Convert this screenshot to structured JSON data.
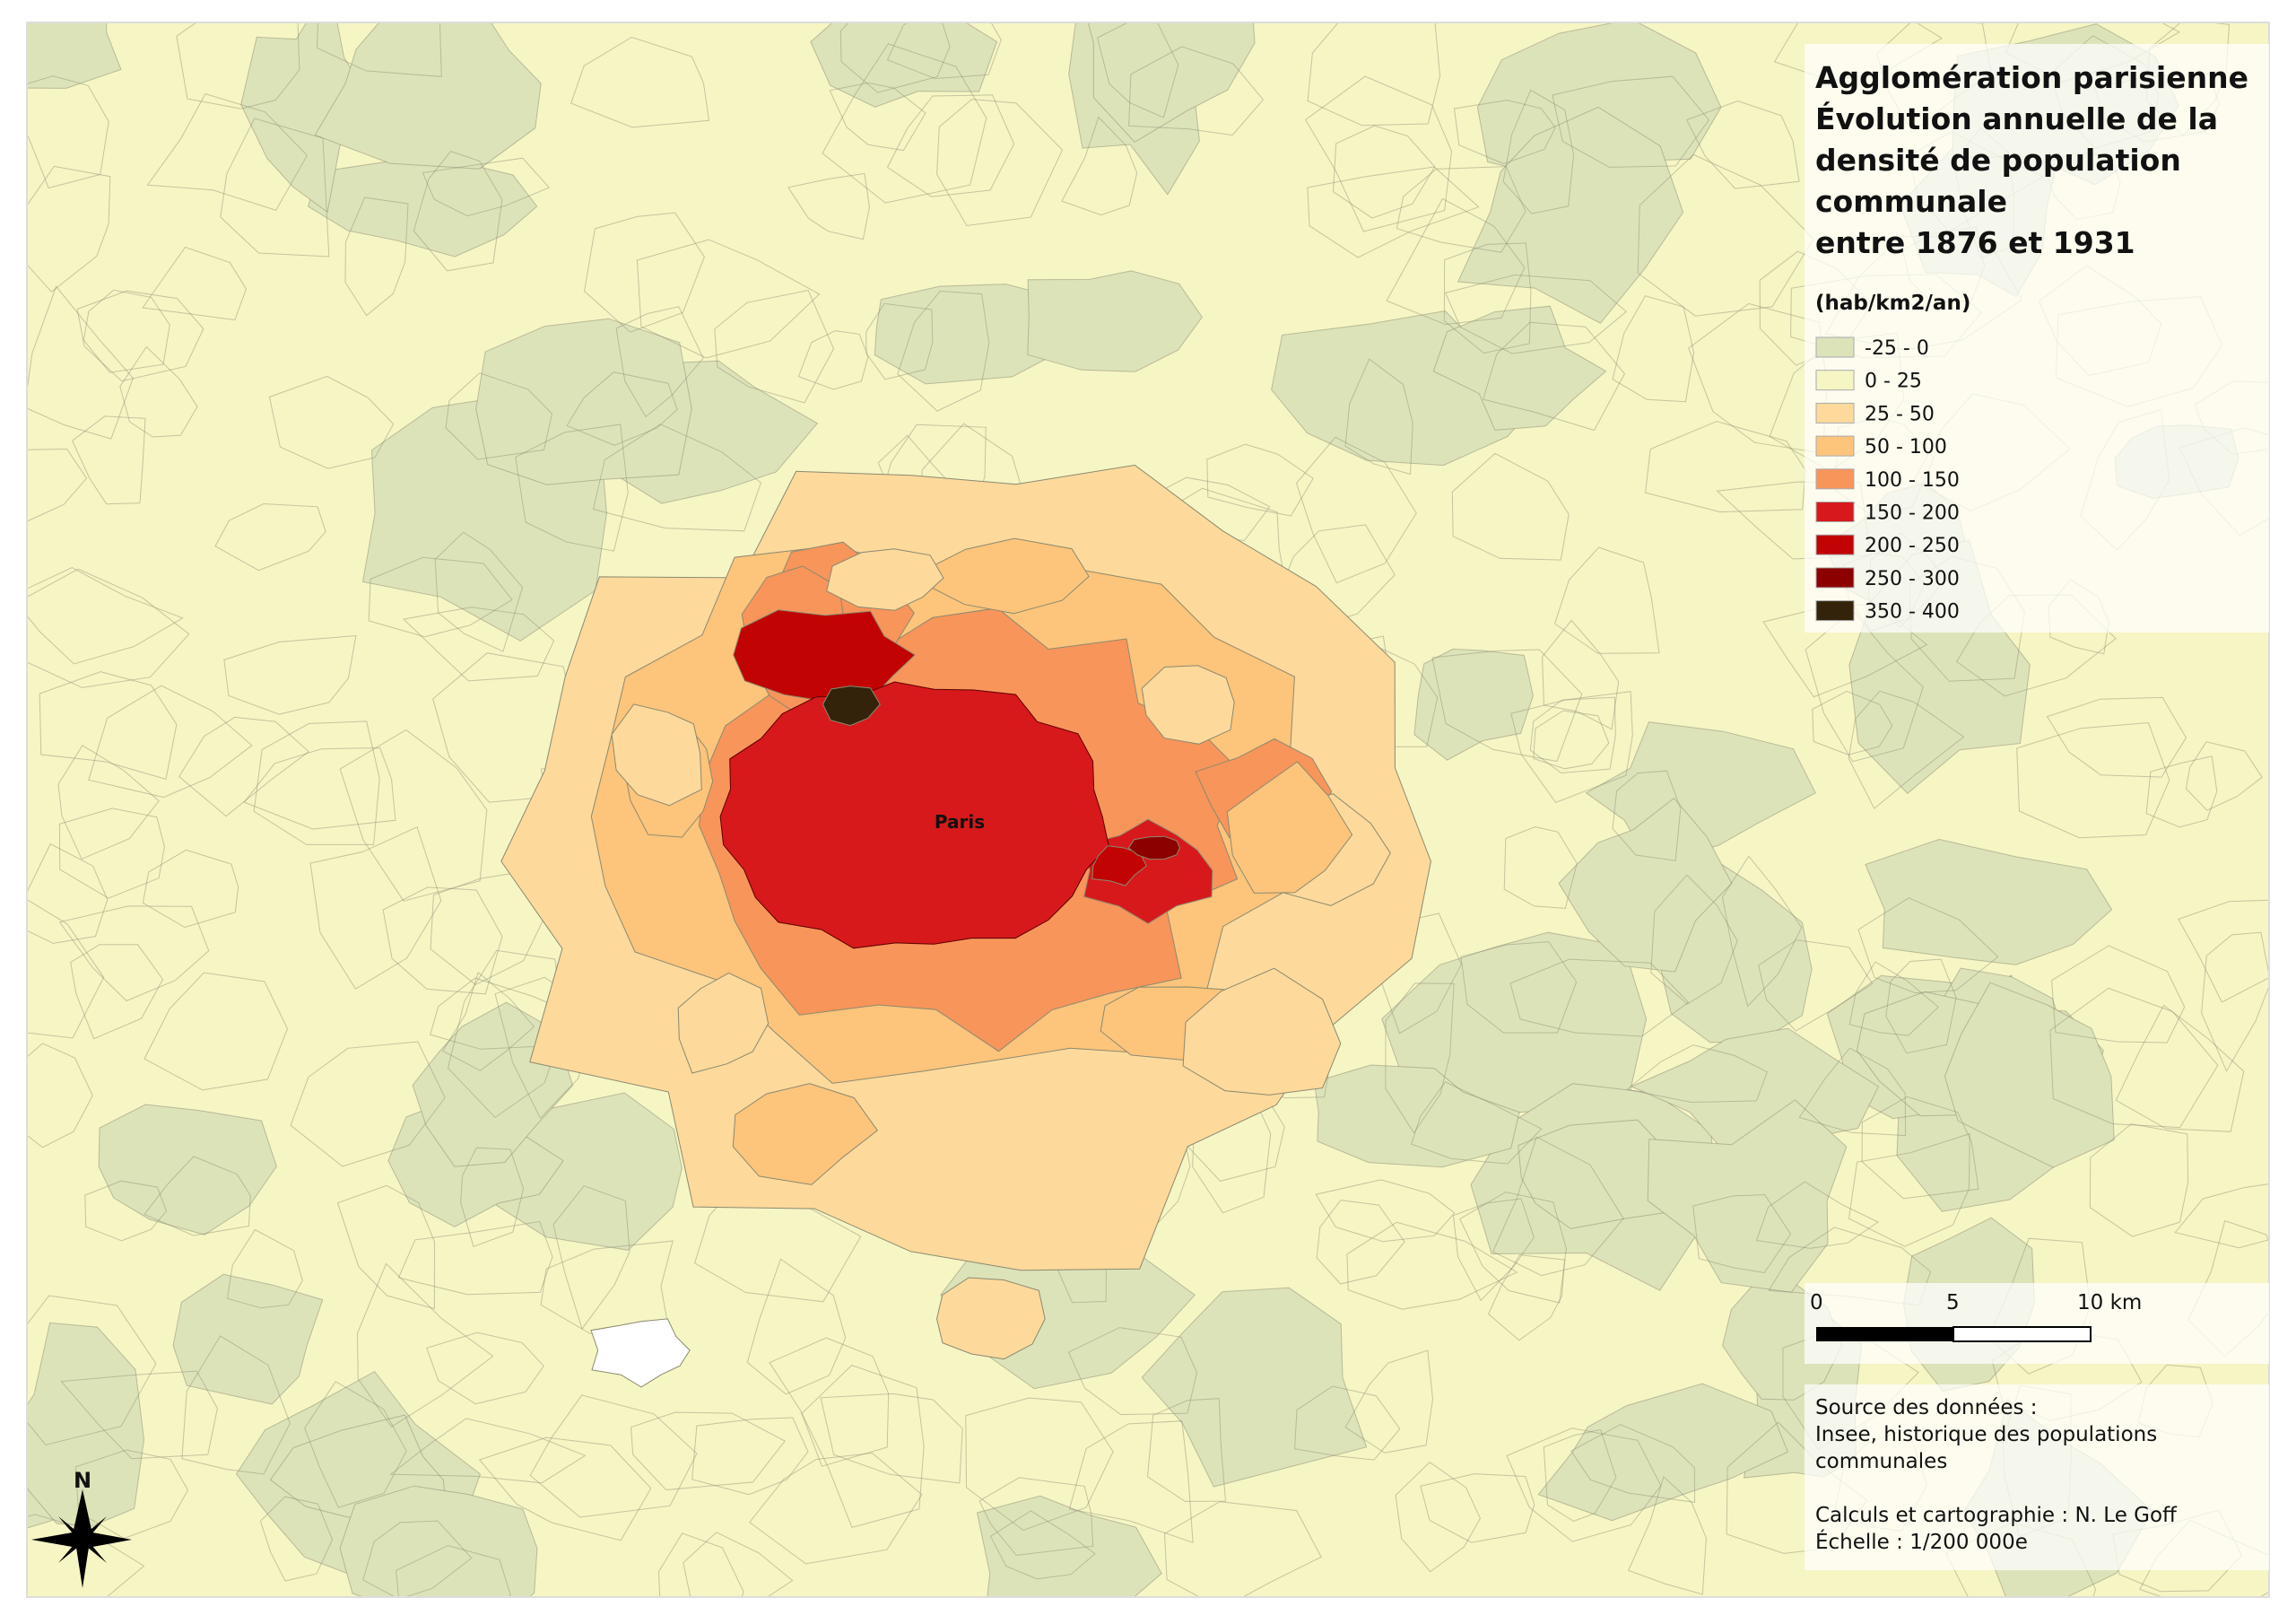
{
  "title": [
    "Agglomération parisienne",
    "Évolution annuelle de la",
    "densité de population",
    "communale",
    "entre 1876 et 1931"
  ],
  "legend": {
    "unit": "(hab/km2/an)",
    "classes": [
      {
        "label": "-25 - 0",
        "color": "#dde3b9"
      },
      {
        "label": "0 - 25",
        "color": "#f6f5c4"
      },
      {
        "label": "25 - 50",
        "color": "#fdd99b"
      },
      {
        "label": "50 - 100",
        "color": "#fdc47b"
      },
      {
        "label": "100 - 150",
        "color": "#f8955a"
      },
      {
        "label": "150 - 200",
        "color": "#d7191c"
      },
      {
        "label": "200 - 250",
        "color": "#c10303"
      },
      {
        "label": "250 - 300",
        "color": "#8c0000"
      },
      {
        "label": "350 - 400",
        "color": "#33230a"
      }
    ]
  },
  "scale_bar": {
    "labels": [
      "0",
      "5",
      "10 km"
    ]
  },
  "source": [
    "Source des données :",
    "Insee, historique des populations",
    "communales"
  ],
  "credits": [
    "Calculs et cartographie : N. Le Goff",
    "Échelle : 1/200 000e"
  ],
  "map_labels": {
    "city": "Paris",
    "north": "N"
  }
}
